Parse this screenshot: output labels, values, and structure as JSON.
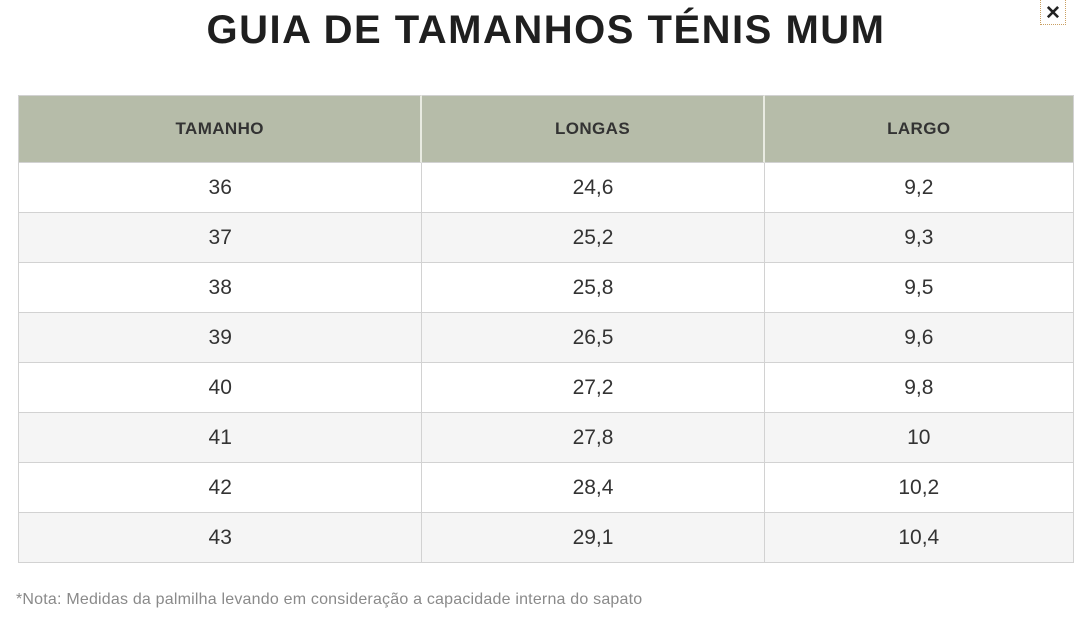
{
  "modal": {
    "title": "GUIA DE TAMANHOS TÉNIS MUM"
  },
  "icons": {
    "close": "✕"
  },
  "table": {
    "headers": [
      "TAMANHO",
      "LONGAS",
      "LARGO"
    ],
    "rows": [
      [
        "36",
        "24,6",
        "9,2"
      ],
      [
        "37",
        "25,2",
        "9,3"
      ],
      [
        "38",
        "25,8",
        "9,5"
      ],
      [
        "39",
        "26,5",
        "9,6"
      ],
      [
        "40",
        "27,2",
        "9,8"
      ],
      [
        "41",
        "27,8",
        "10"
      ],
      [
        "42",
        "28,4",
        "10,2"
      ],
      [
        "43",
        "29,1",
        "10,4"
      ]
    ]
  },
  "footnote": "*Nota: Medidas da palmilha levando em consideração a capacidade interna do sapato",
  "colors": {
    "header_bg": "#b6bca9",
    "row_stripe": "#f5f5f5",
    "border": "#d2d2d2",
    "title": "#1f1f1f",
    "cell_text": "#333333",
    "footnote": "#8a8a8a",
    "close_ring": "#c9a063",
    "close_icon": "#222222"
  }
}
